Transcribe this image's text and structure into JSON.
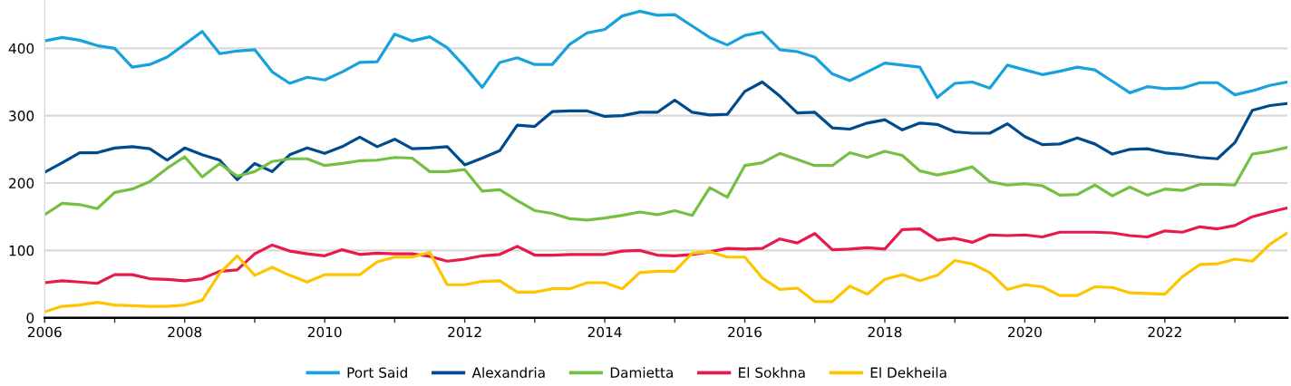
{
  "chart_data": {
    "type": "line",
    "x": [
      "2006-01",
      "2006-04",
      "2006-07",
      "2006-10",
      "2007-01",
      "2007-04",
      "2007-07",
      "2007-10",
      "2008-01",
      "2008-04",
      "2008-07",
      "2008-10",
      "2009-01",
      "2009-04",
      "2009-07",
      "2009-10",
      "2010-01",
      "2010-04",
      "2010-07",
      "2010-10",
      "2011-01",
      "2011-04",
      "2011-07",
      "2011-10",
      "2012-01",
      "2012-04",
      "2012-07",
      "2012-10",
      "2013-01",
      "2013-04",
      "2013-07",
      "2013-10",
      "2014-01",
      "2014-04",
      "2014-07",
      "2014-10",
      "2015-01",
      "2015-04",
      "2015-07",
      "2015-10",
      "2016-01",
      "2016-04",
      "2016-07",
      "2016-10",
      "2017-01",
      "2017-04",
      "2017-07",
      "2017-10",
      "2018-01",
      "2018-04",
      "2018-07",
      "2018-10",
      "2019-01",
      "2019-04",
      "2019-07",
      "2019-10",
      "2020-01",
      "2020-04",
      "2020-07",
      "2020-10",
      "2021-01",
      "2021-04",
      "2021-07",
      "2021-10",
      "2022-01",
      "2022-04",
      "2022-07",
      "2022-10",
      "2023-01",
      "2023-04",
      "2023-07",
      "2023-10"
    ],
    "series": [
      {
        "name": "Port Said",
        "color": "#17a2dc",
        "values": [
          411,
          416,
          412,
          404,
          400,
          372,
          376,
          387,
          406,
          425,
          392,
          396,
          398,
          365,
          348,
          357,
          353,
          365,
          379,
          380,
          421,
          411,
          417,
          401,
          373,
          342,
          379,
          386,
          376,
          376,
          406,
          423,
          428,
          448,
          455,
          449,
          450,
          433,
          416,
          405,
          419,
          424,
          398,
          395,
          387,
          362,
          352,
          365,
          378,
          375,
          372,
          327,
          348,
          350,
          341,
          375,
          368,
          361,
          366,
          372,
          368,
          351,
          334,
          343,
          340,
          341,
          349,
          349,
          331,
          337,
          345,
          350
        ]
      },
      {
        "name": "Alexandria",
        "color": "#004b8d",
        "values": [
          216,
          230,
          245,
          245,
          252,
          254,
          251,
          234,
          252,
          242,
          234,
          205,
          229,
          217,
          242,
          252,
          244,
          254,
          268,
          254,
          265,
          251,
          252,
          254,
          227,
          237,
          248,
          286,
          284,
          306,
          307,
          307,
          299,
          300,
          305,
          305,
          323,
          305,
          301,
          302,
          336,
          350,
          329,
          304,
          305,
          282,
          280,
          289,
          294,
          279,
          289,
          287,
          276,
          274,
          274,
          288,
          269,
          257,
          258,
          267,
          258,
          243,
          250,
          251,
          245,
          242,
          238,
          236,
          260,
          308,
          315,
          318
        ]
      },
      {
        "name": "Damietta",
        "color": "#74c043",
        "values": [
          153,
          170,
          168,
          162,
          186,
          191,
          202,
          222,
          239,
          209,
          229,
          210,
          217,
          232,
          236,
          236,
          226,
          229,
          233,
          234,
          238,
          237,
          217,
          217,
          220,
          188,
          190,
          174,
          159,
          155,
          147,
          145,
          148,
          152,
          157,
          153,
          159,
          152,
          193,
          179,
          226,
          230,
          244,
          235,
          226,
          226,
          245,
          238,
          247,
          241,
          218,
          212,
          217,
          224,
          202,
          197,
          199,
          196,
          182,
          183,
          197,
          181,
          194,
          182,
          191,
          189,
          198,
          198,
          197,
          243,
          247,
          253
        ]
      },
      {
        "name": "El Sokhna",
        "color": "#e8194b",
        "values": [
          52,
          55,
          53,
          51,
          64,
          64,
          58,
          57,
          55,
          58,
          69,
          71,
          95,
          108,
          99,
          95,
          92,
          101,
          94,
          96,
          95,
          95,
          91,
          84,
          87,
          92,
          94,
          106,
          93,
          93,
          94,
          94,
          94,
          99,
          100,
          93,
          92,
          94,
          98,
          103,
          102,
          103,
          117,
          111,
          125,
          101,
          102,
          104,
          102,
          131,
          132,
          115,
          118,
          112,
          123,
          122,
          123,
          120,
          127,
          127,
          127,
          126,
          122,
          120,
          129,
          127,
          135,
          132,
          137,
          150,
          157,
          163
        ]
      },
      {
        "name": "El Dekheila",
        "color": "#ffc400",
        "values": [
          9,
          17,
          19,
          23,
          19,
          18,
          17,
          17,
          19,
          26,
          66,
          92,
          63,
          75,
          63,
          53,
          64,
          64,
          64,
          83,
          90,
          90,
          97,
          49,
          49,
          54,
          55,
          38,
          38,
          43,
          43,
          52,
          52,
          43,
          67,
          69,
          69,
          96,
          98,
          90,
          90,
          59,
          42,
          44,
          24,
          24,
          47,
          35,
          57,
          64,
          55,
          63,
          85,
          80,
          67,
          42,
          49,
          46,
          33,
          33,
          46,
          45,
          37,
          36,
          35,
          61,
          79,
          80,
          87,
          84,
          109,
          126
        ]
      }
    ],
    "xlim": [
      "2006-01",
      "2023-10"
    ],
    "xticks": [
      "2006",
      {
        "value": "2007",
        "label": null
      },
      "2008",
      {
        "value": "2009",
        "label": null
      },
      "2010",
      {
        "value": "2011",
        "label": null
      },
      "2012",
      {
        "value": "2013",
        "label": null
      },
      "2014",
      {
        "value": "2015",
        "label": null
      },
      "2016",
      {
        "value": "2017",
        "label": null
      },
      "2018",
      {
        "value": "2019",
        "label": null
      },
      "2020",
      {
        "value": "2021",
        "label": null
      },
      "2022",
      {
        "value": "2023",
        "label": null
      }
    ],
    "ylim": [
      0,
      470
    ],
    "yticks": [
      0,
      100,
      200,
      300,
      400
    ],
    "grid": "y",
    "legend": "bottom",
    "line_style": "solid"
  }
}
